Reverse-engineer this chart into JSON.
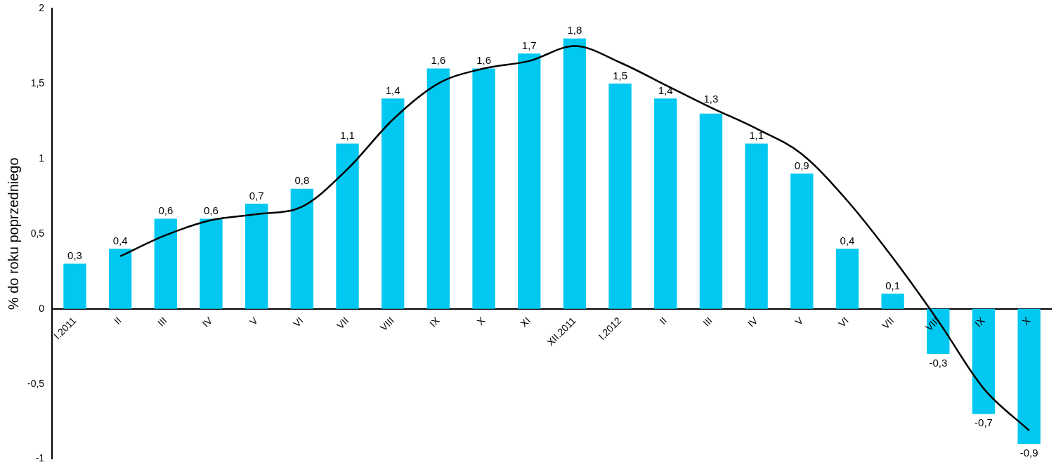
{
  "chart_data": {
    "type": "bar",
    "ylabel": "% do roku poprzedniego",
    "categories": [
      "I.2011",
      "II",
      "III",
      "IV",
      "V",
      "VI",
      "VII",
      "VIII",
      "IX",
      "X",
      "XI",
      "XII.2011",
      "I.2012",
      "II",
      "III",
      "IV",
      "V",
      "VI",
      "VII",
      "VIII",
      "IX",
      "X"
    ],
    "series": [
      {
        "type": "bar",
        "color": "#00c8f0",
        "values": [
          0.3,
          0.4,
          0.6,
          0.6,
          0.7,
          0.8,
          1.1,
          1.4,
          1.6,
          1.6,
          1.7,
          1.8,
          1.5,
          1.4,
          1.3,
          1.1,
          0.9,
          0.4,
          0.1,
          -0.3,
          -0.7,
          -0.9
        ],
        "value_labels": [
          "0,3",
          "0,4",
          "0,6",
          "0,6",
          "0,7",
          "0,8",
          "1,1",
          "1,4",
          "1,6",
          "1,6",
          "1,7",
          "1,8",
          "1,5",
          "1,4",
          "1,3",
          "1,1",
          "0,9",
          "0,4",
          "0,1",
          "-0,3",
          "-0,7",
          "-0,9"
        ]
      },
      {
        "type": "line",
        "color": "#000000",
        "values": [
          null,
          0.35,
          0.49,
          0.59,
          0.63,
          0.68,
          0.93,
          1.26,
          1.5,
          1.6,
          1.65,
          1.75,
          1.64,
          1.49,
          1.34,
          1.2,
          1.03,
          0.72,
          0.34,
          -0.08,
          -0.53,
          -0.81
        ]
      }
    ],
    "ylim": [
      -1,
      2
    ],
    "yticks": [
      {
        "value": -1,
        "label": "-1"
      },
      {
        "value": -0.5,
        "label": "-0,5"
      },
      {
        "value": 0,
        "label": "0"
      },
      {
        "value": 0.5,
        "label": "0,5"
      },
      {
        "value": 1,
        "label": "1"
      },
      {
        "value": 1.5,
        "label": "1,5"
      },
      {
        "value": 2,
        "label": "2"
      }
    ],
    "grid": false,
    "legend": false,
    "marker": "none",
    "line_style": "solid"
  }
}
